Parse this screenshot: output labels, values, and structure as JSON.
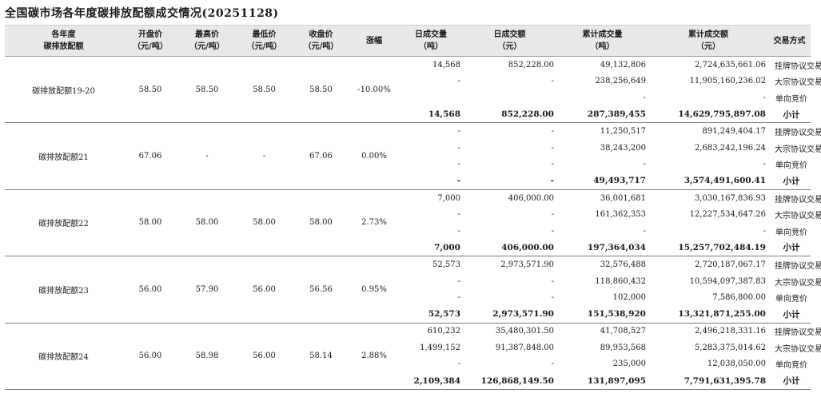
{
  "title": "全国碳市场各年度碳排放配额成交情况(20251128)",
  "headers": [
    [
      "各年度",
      "碳排放配额"
    ],
    [
      "开盘价",
      "（元/吨）"
    ],
    [
      "最高价",
      "（元/吨）"
    ],
    [
      "最低价",
      "（元/吨）"
    ],
    [
      "收盘价",
      "（元/吨）"
    ],
    [
      "涨幅",
      ""
    ],
    [
      "日成交量",
      "（吨）"
    ],
    [
      "日成交额",
      "（元）"
    ],
    [
      "累计成交量",
      "（吨）"
    ],
    [
      "累计成交额",
      "（元）"
    ],
    [
      "交易方式",
      ""
    ]
  ],
  "groups": [
    {
      "name": "碳排放配额19-20",
      "open": "58.50",
      "high": "58.50",
      "low": "58.50",
      "close": "58.50",
      "change": "-10.00%",
      "rows": [
        {
          "vol": "14,568",
          "amt": "852,228.00",
          "cvol": "49,132,806",
          "camt": "2,724,635,661.06",
          "type": "挂牌协议交易"
        },
        {
          "vol": "-",
          "amt": "-",
          "cvol": "238,256,649",
          "camt": "11,905,160,236.02",
          "type": "大宗协议交易"
        },
        {
          "vol": "",
          "amt": "",
          "cvol": "-",
          "camt": "-",
          "type": "单向竞价"
        },
        {
          "vol": "14,568",
          "amt": "852,228.00",
          "cvol": "287,389,455",
          "camt": "14,629,795,897.08",
          "type": "小计"
        }
      ]
    },
    {
      "name": "碳排放配额21",
      "open": "67.06",
      "high": "-",
      "low": "-",
      "close": "67.06",
      "change": "0.00%",
      "rows": [
        {
          "vol": "-",
          "amt": "-",
          "cvol": "11,250,517",
          "camt": "891,249,404.17",
          "type": "挂牌协议交易"
        },
        {
          "vol": "-",
          "amt": "-",
          "cvol": "38,243,200",
          "camt": "2,683,242,196.24",
          "type": "大宗协议交易"
        },
        {
          "vol": "-",
          "amt": "-",
          "cvol": "-",
          "camt": "-",
          "type": "单向竞价"
        },
        {
          "vol": "-",
          "amt": "-",
          "cvol": "49,493,717",
          "camt": "3,574,491,600.41",
          "type": "小计"
        }
      ]
    },
    {
      "name": "碳排放配额22",
      "open": "58.00",
      "high": "58.00",
      "low": "58.00",
      "close": "58.00",
      "change": "2.73%",
      "rows": [
        {
          "vol": "7,000",
          "amt": "406,000.00",
          "cvol": "36,001,681",
          "camt": "3,030,167,836.93",
          "type": "挂牌协议交易"
        },
        {
          "vol": "-",
          "amt": "-",
          "cvol": "161,362,353",
          "camt": "12,227,534,647.26",
          "type": "大宗协议交易"
        },
        {
          "vol": "-",
          "amt": "-",
          "cvol": "-",
          "camt": "-",
          "type": "单向竞价"
        },
        {
          "vol": "7,000",
          "amt": "406,000.00",
          "cvol": "197,364,034",
          "camt": "15,257,702,484.19",
          "type": "小计"
        }
      ]
    },
    {
      "name": "碳排放配额23",
      "open": "56.00",
      "high": "57.90",
      "low": "56.00",
      "close": "56.56",
      "change": "0.95%",
      "rows": [
        {
          "vol": "52,573",
          "amt": "2,973,571.90",
          "cvol": "32,576,488",
          "camt": "2,720,187,067.17",
          "type": "挂牌协议交易"
        },
        {
          "vol": "-",
          "amt": "-",
          "cvol": "118,860,432",
          "camt": "10,594,097,387.83",
          "type": "大宗协议交易"
        },
        {
          "vol": "-",
          "amt": "-",
          "cvol": "102,000",
          "camt": "7,586,800.00",
          "type": "单向竞价"
        },
        {
          "vol": "52,573",
          "amt": "2,973,571.90",
          "cvol": "151,538,920",
          "camt": "13,321,871,255.00",
          "type": "小计"
        }
      ]
    },
    {
      "name": "碳排放配额24",
      "open": "56.00",
      "high": "58.98",
      "low": "56.00",
      "close": "58.14",
      "change": "2.88%",
      "rows": [
        {
          "vol": "610,232",
          "amt": "35,480,301.50",
          "cvol": "41,708,527",
          "camt": "2,496,218,331.16",
          "type": "挂牌协议交易"
        },
        {
          "vol": "1,499,152",
          "amt": "91,387,848.00",
          "cvol": "89,953,568",
          "camt": "5,283,375,014.62",
          "type": "大宗协议交易"
        },
        {
          "vol": "-",
          "amt": "-",
          "cvol": "235,000",
          "camt": "12,038,050.00",
          "type": "单向竞价"
        },
        {
          "vol": "2,109,384",
          "amt": "126,868,149.50",
          "cvol": "131,897,095",
          "camt": "7,791,631,395.78",
          "type": "小计"
        }
      ]
    }
  ]
}
